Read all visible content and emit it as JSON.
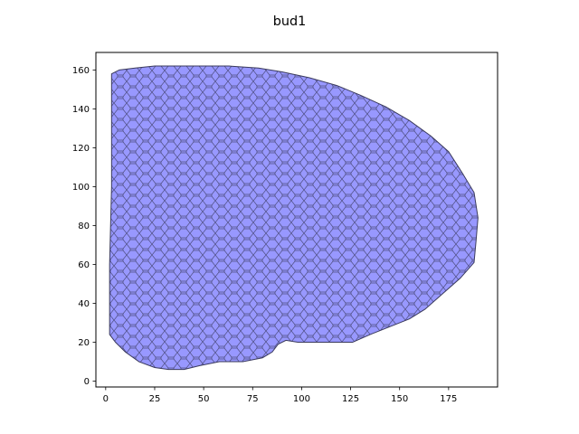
{
  "chart_data": {
    "type": "area",
    "title": "bud1",
    "xlabel": "",
    "ylabel": "",
    "xlim": [
      -5,
      200
    ],
    "ylim": [
      -3,
      169
    ],
    "x_ticks": [
      0,
      25,
      50,
      75,
      100,
      125,
      150,
      175
    ],
    "y_ticks": [
      0,
      20,
      40,
      60,
      80,
      100,
      120,
      140,
      160
    ],
    "grid": false,
    "legend": "none",
    "fill_color": "#9898ff",
    "edge_color": "#3a3a5c",
    "polygon": [
      [
        3,
        158
      ],
      [
        7,
        160
      ],
      [
        15,
        161
      ],
      [
        25,
        162
      ],
      [
        40,
        162
      ],
      [
        52,
        162
      ],
      [
        63,
        162
      ],
      [
        78,
        161
      ],
      [
        90,
        159
      ],
      [
        104,
        156
      ],
      [
        118,
        152
      ],
      [
        130,
        147
      ],
      [
        143,
        141
      ],
      [
        155,
        134
      ],
      [
        166,
        126
      ],
      [
        175,
        118
      ],
      [
        182,
        107
      ],
      [
        188,
        97
      ],
      [
        190,
        84
      ],
      [
        189,
        72
      ],
      [
        188,
        61
      ],
      [
        181,
        53
      ],
      [
        172,
        45
      ],
      [
        163,
        37
      ],
      [
        155,
        32
      ],
      [
        145,
        28
      ],
      [
        135,
        24
      ],
      [
        126,
        20
      ],
      [
        112,
        20
      ],
      [
        98,
        20
      ],
      [
        92,
        21
      ],
      [
        88,
        19
      ],
      [
        85,
        15
      ],
      [
        80,
        12
      ],
      [
        70,
        10
      ],
      [
        58,
        10
      ],
      [
        48,
        8
      ],
      [
        40,
        6
      ],
      [
        32,
        6
      ],
      [
        25,
        7
      ],
      [
        17,
        10
      ],
      [
        10,
        15
      ],
      [
        5,
        20
      ],
      [
        2,
        24
      ],
      [
        2,
        60
      ],
      [
        3,
        100
      ],
      [
        3,
        140
      ]
    ]
  }
}
